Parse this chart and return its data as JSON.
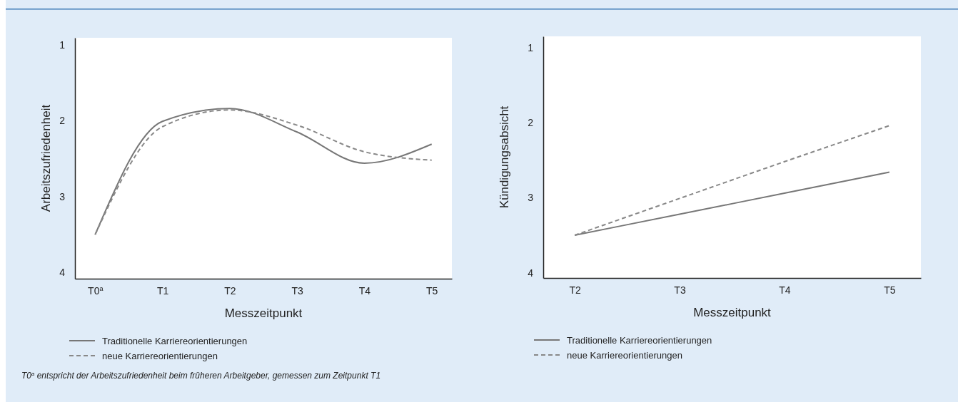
{
  "chart_data": [
    {
      "type": "line",
      "ylabel": "Arbeitszufriedenheit",
      "xlabel": "Messzeitpunkt",
      "categories": [
        "T0$^{a}$",
        "T1",
        "T2",
        "T3",
        "T4",
        "T5"
      ],
      "ylim": [
        4.08,
        0.91
      ],
      "yticks": [
        1,
        2,
        3,
        4
      ],
      "legend": "bottom",
      "grid": false,
      "series": [
        {
          "name": "Traditionelle Karriereorientierungen",
          "color": "#777777",
          "line_style": "solid",
          "values": [
            3.5,
            2.01,
            1.84,
            2.15,
            2.56,
            2.31
          ]
        },
        {
          "name": "neue Karriereorientierungen",
          "color": "#888888",
          "line_style": "dashed",
          "values": [
            3.5,
            2.08,
            1.86,
            2.06,
            2.41,
            2.52
          ]
        }
      ],
      "annotations": [
        "T0$^{a}$ entspricht der Arbeitszufriedenheit beim früheren Arbeitgeber, gemessen zum Zeitpunkt T1"
      ]
    },
    {
      "type": "line",
      "ylabel": "Kündigungsabsicht",
      "xlabel": "Messzeitpunkt",
      "categories": [
        "T2",
        "T3",
        "T4",
        "T5"
      ],
      "ylim": [
        4.07,
        0.85
      ],
      "yticks": [
        1,
        2,
        3,
        4
      ],
      "legend": "bottom",
      "grid": false,
      "series": [
        {
          "name": "Traditionelle Karriereorientierungen",
          "color": "#777777",
          "line_style": "solid",
          "values": [
            3.5,
            3.22,
            2.94,
            2.66
          ]
        },
        {
          "name": "neue Karriereorientierungen",
          "color": "#888888",
          "line_style": "dashed",
          "values": [
            3.5,
            3.01,
            2.52,
            2.04
          ]
        }
      ]
    }
  ]
}
